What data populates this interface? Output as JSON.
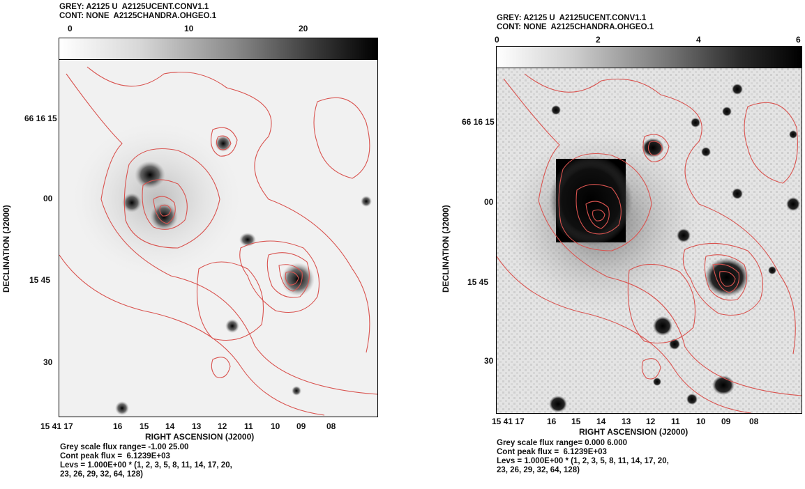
{
  "panels": [
    {
      "grey_line": "GREY: A2125 U  A2125UCENT.CONV1.1",
      "cont_line": "CONT: NONE  A2125CHANDRA.OHGEO.1",
      "scale_ticks": [
        "0",
        "10",
        "20"
      ],
      "y_axis_label": "DECLINATION (J2000)",
      "y_ticks": [
        "66 16 15",
        "00",
        "15 45",
        "30"
      ],
      "x_ticks": [
        "15 41 17",
        "16",
        "15",
        "14",
        "13",
        "12",
        "11",
        "10",
        "09",
        "08"
      ],
      "x_axis_label": "RIGHT ASCENSION (J2000)",
      "footer": [
        "Grey scale flux range= -1.00 25.00",
        "Cont peak flux =  6.1239E+03",
        "Levs = 1.000E+00 * (1, 2, 3, 5, 8, 11, 14, 17, 20,",
        "23, 26, 29, 32, 64, 128)"
      ]
    },
    {
      "grey_line": "GREY: A2125 U  A2125UCENT.CONV1.1",
      "cont_line": "CONT: NONE  A2125CHANDRA.OHGEO.1",
      "scale_ticks": [
        "0",
        "2",
        "4",
        "6"
      ],
      "y_axis_label": "DECLINATION (J2000)",
      "y_ticks": [
        "66 16 15",
        "00",
        "15 45",
        "30"
      ],
      "x_ticks": [
        "15 41 17",
        "16",
        "15",
        "14",
        "13",
        "12",
        "11",
        "10",
        "09",
        "08"
      ],
      "x_axis_label": "RIGHT ASCENSION (J2000)",
      "footer": [
        "Grey scale flux range= 0.000 6.000",
        "Cont peak flux =  6.1239E+03",
        "Levs = 1.000E+00 * (1, 2, 3, 5, 8, 11, 14, 17, 20,",
        "23, 26, 29, 32, 64, 128)"
      ]
    }
  ],
  "colors": {
    "contour": "#d9534f",
    "grey_dark": "#000000",
    "grey_light": "#ffffff"
  }
}
